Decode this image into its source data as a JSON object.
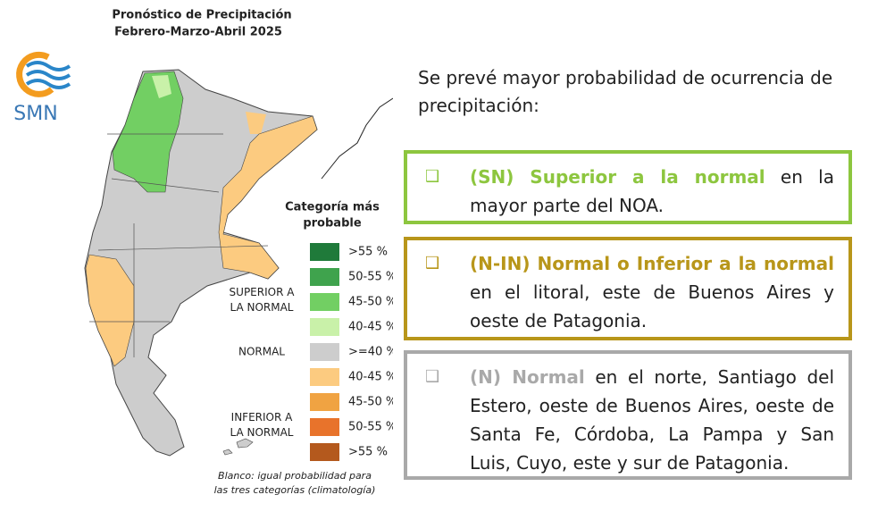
{
  "map": {
    "title": "Pronóstico de Precipitación",
    "subtitle": "Febrero-Marzo-Abril 2025",
    "logo_text": "SMN",
    "legend": {
      "title": [
        "Categoría más",
        "probable"
      ],
      "groups": [
        {
          "lines": [
            "SUPERIOR A",
            "LA NORMAL"
          ],
          "first": 0,
          "last": 3
        },
        {
          "lines": [
            "NORMAL"
          ],
          "first": 4,
          "last": 4
        },
        {
          "lines": [
            "INFERIOR A",
            "LA NORMAL"
          ],
          "first": 5,
          "last": 8
        }
      ],
      "items": [
        {
          "label": ">55 %",
          "color": "#1f7a3a"
        },
        {
          "label": "50-55 %",
          "color": "#3fa34d"
        },
        {
          "label": "45-50 %",
          "color": "#72cf63"
        },
        {
          "label": "40-45 %",
          "color": "#c9f1a9"
        },
        {
          "label": ">=40 %",
          "color": "#cdcdcd"
        },
        {
          "label": "40-45 %",
          "color": "#fccb80"
        },
        {
          "label": "45-50 %",
          "color": "#f0a342"
        },
        {
          "label": "50-55 %",
          "color": "#e8732b"
        },
        {
          "label": ">55 %",
          "color": "#b4591d"
        }
      ]
    },
    "footnote": [
      "Blanco: igual probabilidad para",
      "las tres categorías (climatología)"
    ]
  },
  "intro": "Se prevé mayor probabilidad de ocurrencia de precipitación:",
  "boxes": [
    {
      "highlight": "(SN) Superior a la normal",
      "text": " en la mayor parte del NOA.",
      "color": "#8dc63f"
    },
    {
      "highlight": "(N-IN) Normal o Inferior a la normal",
      "text": " en el litoral, este de Buenos Aires y oeste de Patagonia.",
      "color": "#b8961a"
    },
    {
      "highlight": "(N) Normal",
      "text": " en el norte, Santiago del Estero, oeste de Buenos Aires, oeste de Santa Fe, Córdoba, La Pampa y San Luis, Cuyo,  este y sur de Patagonia.",
      "color": "#a9a9a9"
    }
  ]
}
